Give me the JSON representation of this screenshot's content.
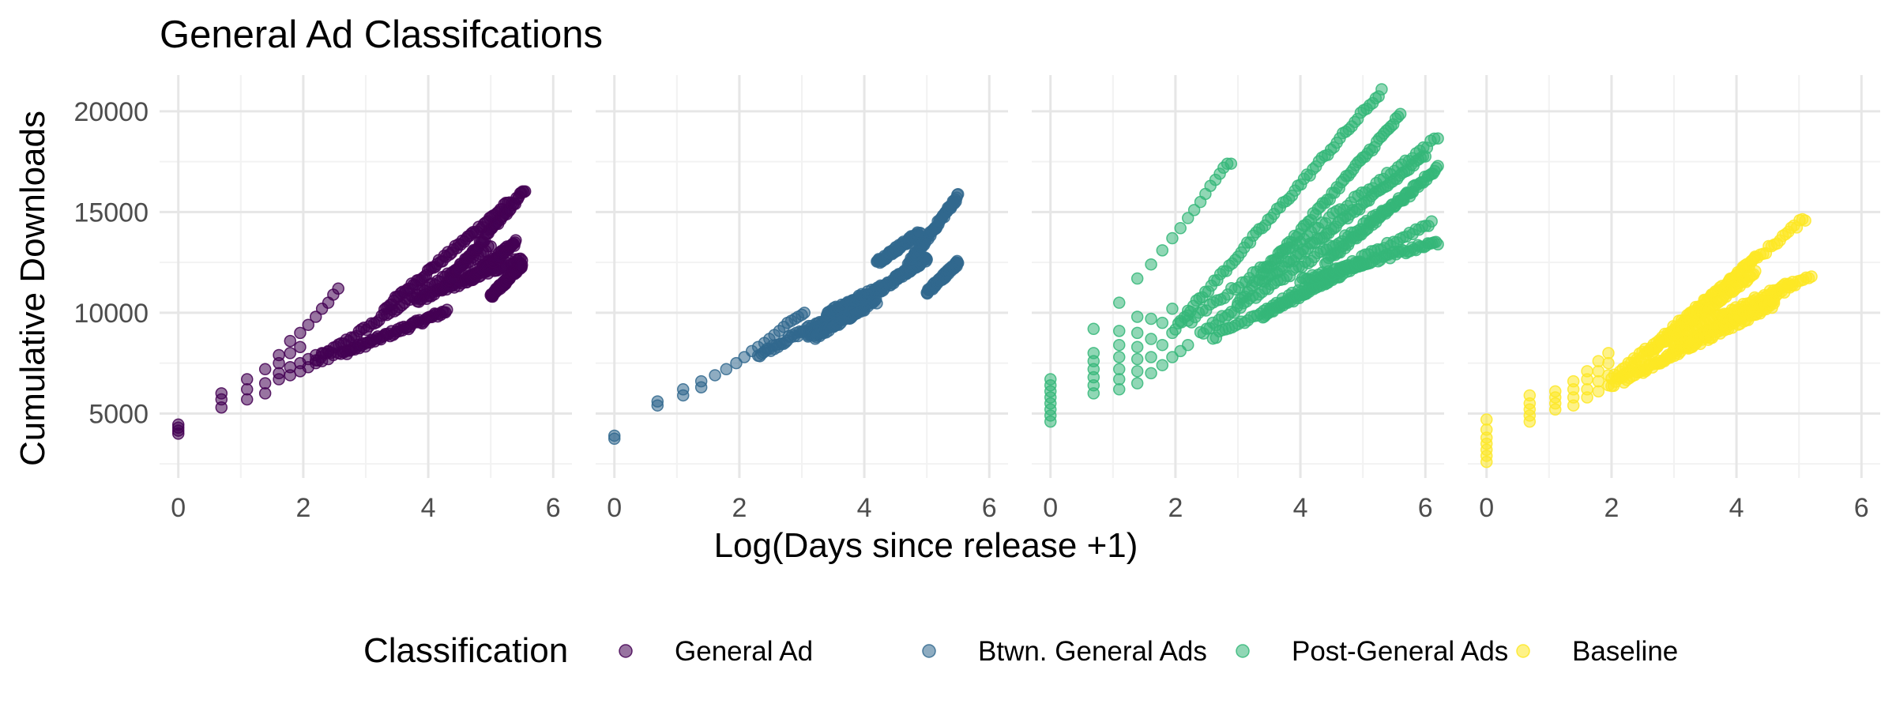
{
  "chart_data": {
    "type": "scatter",
    "title": "General Ad Classifcations",
    "xlabel": "Log(Days since release +1)",
    "ylabel": "Cumulative Downloads",
    "xlim": [
      -0.3,
      6.3
    ],
    "ylim": [
      1800,
      21800
    ],
    "x_ticks": [
      "0",
      "2",
      "4",
      "6"
    ],
    "x_tick_values": [
      0,
      2,
      4,
      6
    ],
    "y_ticks": [
      "5000",
      "10000",
      "15000",
      "20000"
    ],
    "y_tick_values": [
      5000,
      10000,
      15000,
      20000
    ],
    "grid": true,
    "facets": "one panel per classification",
    "legend": {
      "title": "Classification",
      "position": "bottom",
      "entries": [
        "General Ad",
        "Btwn. General Ads",
        "Post-General Ads",
        "Baseline"
      ]
    },
    "series": [
      {
        "name": "General Ad",
        "color": "#440154",
        "points": [
          [
            0,
            4000
          ],
          [
            0,
            4150
          ],
          [
            0,
            4300
          ],
          [
            0,
            4450
          ],
          [
            0.69,
            5300
          ],
          [
            0.69,
            5700
          ],
          [
            0.69,
            6000
          ],
          [
            1.1,
            5700
          ],
          [
            1.1,
            6200
          ],
          [
            1.1,
            6700
          ],
          [
            1.39,
            6000
          ],
          [
            1.39,
            6500
          ],
          [
            1.39,
            7200
          ],
          [
            1.61,
            6700
          ],
          [
            1.61,
            7000
          ],
          [
            1.61,
            7500
          ],
          [
            1.61,
            7900
          ],
          [
            1.79,
            6900
          ],
          [
            1.79,
            7300
          ],
          [
            1.79,
            8000
          ],
          [
            1.79,
            8600
          ],
          [
            1.95,
            7100
          ],
          [
            1.95,
            7500
          ],
          [
            1.95,
            8300
          ],
          [
            1.95,
            9000
          ],
          [
            2.08,
            7300
          ],
          [
            2.08,
            7700
          ],
          [
            2.08,
            9400
          ],
          [
            2.2,
            7500
          ],
          [
            2.2,
            7900
          ],
          [
            2.2,
            9800
          ],
          [
            2.3,
            7600
          ],
          [
            2.3,
            8000
          ],
          [
            2.3,
            10200
          ],
          [
            2.4,
            7700
          ],
          [
            2.4,
            8100
          ],
          [
            2.4,
            10500
          ],
          [
            2.48,
            7900
          ],
          [
            2.48,
            10900
          ],
          [
            2.56,
            8000
          ],
          [
            2.56,
            11200
          ]
        ],
        "bands": [
          {
            "x": [
              2.2,
              5.0
            ],
            "y": [
              7600,
              13300
            ]
          },
          {
            "x": [
              2.6,
              4.3
            ],
            "y": [
              7950,
              10100
            ]
          },
          {
            "x": [
              3.3,
              5.3
            ],
            "y": [
              10200,
              15500
            ]
          },
          {
            "x": [
              3.8,
              5.5
            ],
            "y": [
              10600,
              12700
            ]
          },
          {
            "x": [
              4.2,
              5.55
            ],
            "y": [
              11100,
              16100
            ]
          },
          {
            "x": [
              4.6,
              5.4
            ],
            "y": [
              11600,
              13500
            ]
          },
          {
            "x": [
              5.0,
              5.5
            ],
            "y": [
              10800,
              12400
            ]
          }
        ]
      },
      {
        "name": "Btwn. General Ads",
        "color": "#31688e",
        "points": [
          [
            0,
            3750
          ],
          [
            0,
            3900
          ],
          [
            0.69,
            5400
          ],
          [
            0.69,
            5600
          ],
          [
            1.1,
            5900
          ],
          [
            1.1,
            6200
          ],
          [
            1.39,
            6300
          ],
          [
            1.39,
            6600
          ],
          [
            1.61,
            6900
          ],
          [
            1.79,
            7200
          ],
          [
            1.95,
            7500
          ],
          [
            2.08,
            7800
          ],
          [
            2.2,
            8100
          ],
          [
            2.3,
            8300
          ],
          [
            2.4,
            8500
          ],
          [
            2.48,
            8700
          ],
          [
            2.56,
            8900
          ],
          [
            2.64,
            9100
          ],
          [
            2.71,
            9300
          ],
          [
            2.77,
            9500
          ],
          [
            2.83,
            9600
          ],
          [
            2.89,
            9700
          ],
          [
            2.94,
            9800
          ],
          [
            3.0,
            9900
          ],
          [
            3.04,
            10000
          ]
        ],
        "bands": [
          {
            "x": [
              2.3,
              4.3
            ],
            "y": [
              7900,
              11200
            ]
          },
          {
            "x": [
              3.1,
              3.6
            ],
            "y": [
              8900,
              9900
            ]
          },
          {
            "x": [
              3.2,
              4.2
            ],
            "y": [
              8800,
              10600
            ]
          },
          {
            "x": [
              3.4,
              4.5
            ],
            "y": [
              10000,
              11600
            ]
          },
          {
            "x": [
              4.2,
              4.9
            ],
            "y": [
              12500,
              14000
            ]
          },
          {
            "x": [
              4.5,
              5.0
            ],
            "y": [
              11700,
              12700
            ]
          },
          {
            "x": [
              4.7,
              5.5
            ],
            "y": [
              12400,
              15800
            ]
          },
          {
            "x": [
              5.0,
              5.5
            ],
            "y": [
              11000,
              12500
            ]
          }
        ]
      },
      {
        "name": "Post-General Ads",
        "color": "#35b779",
        "points": [
          [
            0,
            4600
          ],
          [
            0,
            4900
          ],
          [
            0,
            5200
          ],
          [
            0,
            5500
          ],
          [
            0,
            5800
          ],
          [
            0,
            6100
          ],
          [
            0,
            6400
          ],
          [
            0,
            6700
          ],
          [
            0.69,
            6000
          ],
          [
            0.69,
            6400
          ],
          [
            0.69,
            6800
          ],
          [
            0.69,
            7200
          ],
          [
            0.69,
            7600
          ],
          [
            0.69,
            8000
          ],
          [
            0.69,
            9200
          ],
          [
            1.1,
            6200
          ],
          [
            1.1,
            6700
          ],
          [
            1.1,
            7200
          ],
          [
            1.1,
            7800
          ],
          [
            1.1,
            8400
          ],
          [
            1.1,
            9100
          ],
          [
            1.1,
            10500
          ],
          [
            1.39,
            6500
          ],
          [
            1.39,
            7100
          ],
          [
            1.39,
            7700
          ],
          [
            1.39,
            8300
          ],
          [
            1.39,
            9000
          ],
          [
            1.39,
            9800
          ],
          [
            1.39,
            11700
          ],
          [
            1.61,
            7000
          ],
          [
            1.61,
            7800
          ],
          [
            1.61,
            8700
          ],
          [
            1.61,
            9700
          ],
          [
            1.61,
            12400
          ],
          [
            1.79,
            7400
          ],
          [
            1.79,
            8400
          ],
          [
            1.79,
            9500
          ],
          [
            1.79,
            13100
          ],
          [
            1.95,
            7800
          ],
          [
            1.95,
            9000
          ],
          [
            1.95,
            10200
          ],
          [
            1.95,
            13700
          ],
          [
            2.08,
            8100
          ],
          [
            2.08,
            9600
          ],
          [
            2.08,
            14200
          ],
          [
            2.2,
            8400
          ],
          [
            2.2,
            10100
          ],
          [
            2.2,
            14700
          ],
          [
            2.3,
            15100
          ],
          [
            2.4,
            15500
          ],
          [
            2.48,
            15900
          ],
          [
            2.56,
            16300
          ],
          [
            2.64,
            16600
          ],
          [
            2.71,
            16900
          ],
          [
            2.77,
            17200
          ],
          [
            2.83,
            17400
          ],
          [
            2.89,
            17400
          ]
        ],
        "bands": [
          {
            "x": [
              2.0,
              5.3
            ],
            "y": [
              9300,
              21000
            ]
          },
          {
            "x": [
              2.2,
              6.2
            ],
            "y": [
              9500,
              18700
            ]
          },
          {
            "x": [
              2.4,
              5.8
            ],
            "y": [
              9000,
              16000
            ]
          },
          {
            "x": [
              2.6,
              6.1
            ],
            "y": [
              8800,
              14500
            ]
          },
          {
            "x": [
              3.0,
              5.6
            ],
            "y": [
              10500,
              19800
            ]
          },
          {
            "x": [
              3.4,
              6.0
            ],
            "y": [
              11500,
              17800
            ]
          },
          {
            "x": [
              3.4,
              5.0
            ],
            "y": [
              9900,
              12500
            ]
          },
          {
            "x": [
              4.0,
              6.2
            ],
            "y": [
              11600,
              13500
            ]
          },
          {
            "x": [
              4.4,
              6.2
            ],
            "y": [
              12500,
              17200
            ]
          }
        ]
      },
      {
        "name": "Baseline",
        "color": "#fde725",
        "points": [
          [
            0,
            2600
          ],
          [
            0,
            2900
          ],
          [
            0,
            3200
          ],
          [
            0,
            3500
          ],
          [
            0,
            3800
          ],
          [
            0,
            4200
          ],
          [
            0,
            4700
          ],
          [
            0.69,
            4600
          ],
          [
            0.69,
            4900
          ],
          [
            0.69,
            5200
          ],
          [
            0.69,
            5500
          ],
          [
            0.69,
            5900
          ],
          [
            1.1,
            5200
          ],
          [
            1.1,
            5500
          ],
          [
            1.1,
            5800
          ],
          [
            1.1,
            6100
          ],
          [
            1.39,
            5400
          ],
          [
            1.39,
            5800
          ],
          [
            1.39,
            6200
          ],
          [
            1.39,
            6600
          ],
          [
            1.61,
            5800
          ],
          [
            1.61,
            6200
          ],
          [
            1.61,
            6700
          ],
          [
            1.61,
            7100
          ],
          [
            1.79,
            6100
          ],
          [
            1.79,
            6600
          ],
          [
            1.79,
            7100
          ],
          [
            1.79,
            7600
          ],
          [
            1.95,
            6400
          ],
          [
            1.95,
            6900
          ],
          [
            1.95,
            7500
          ],
          [
            1.95,
            8000
          ]
        ],
        "bands": [
          {
            "x": [
              2.0,
              5.1
            ],
            "y": [
              6700,
              14700
            ]
          },
          {
            "x": [
              2.0,
              4.3
            ],
            "y": [
              6400,
              12700
            ]
          },
          {
            "x": [
              2.2,
              5.2
            ],
            "y": [
              6600,
              11900
            ]
          },
          {
            "x": [
              2.4,
              4.6
            ],
            "y": [
              7000,
              10400
            ]
          },
          {
            "x": [
              2.6,
              4.3
            ],
            "y": [
              8000,
              12000
            ]
          },
          {
            "x": [
              2.8,
              4.9
            ],
            "y": [
              8500,
              11500
            ]
          },
          {
            "x": [
              3.0,
              4.6
            ],
            "y": [
              8200,
              10700
            ]
          }
        ]
      }
    ]
  }
}
